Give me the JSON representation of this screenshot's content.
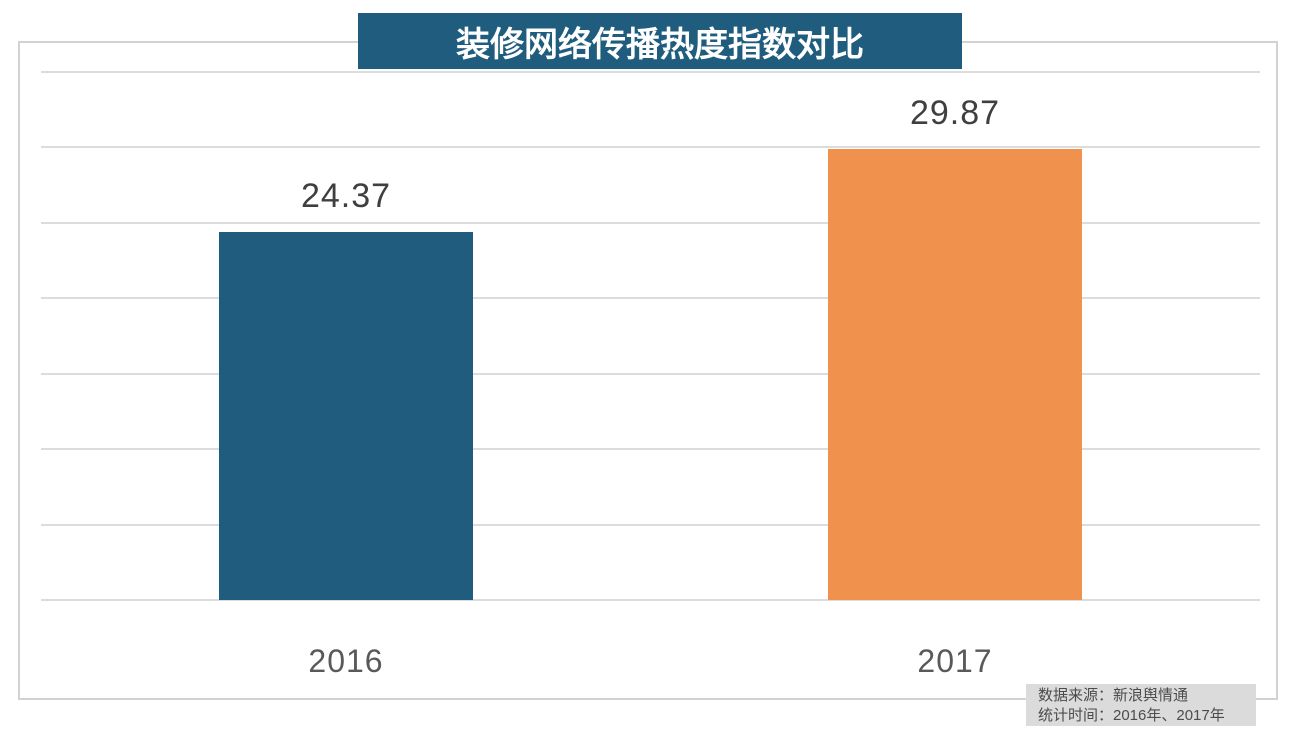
{
  "title_banner": {
    "text": "装修网络传播热度指数对比",
    "bg_color": "#1F5C7E",
    "text_color": "#FFFFFF"
  },
  "chart_data": {
    "type": "bar",
    "title": "装修网络传播热度指数对比",
    "categories": [
      "2016",
      "2017"
    ],
    "values": [
      24.37,
      29.87
    ],
    "value_labels": [
      "24.37",
      "29.87"
    ],
    "bar_colors": [
      "#1F5C7E",
      "#F0924E"
    ],
    "xlabel": "",
    "ylabel": "",
    "ylim": [
      0,
      35
    ],
    "grid_step": 5,
    "grid": true,
    "gridline_color": "#DCDCDC",
    "legend_position": "none"
  },
  "source_note": {
    "line1": "数据来源：新浪舆情通",
    "line2": "统计时间：2016年、2017年",
    "bg_color": "#DBDBDB",
    "text_color": "#4C4C4C"
  }
}
